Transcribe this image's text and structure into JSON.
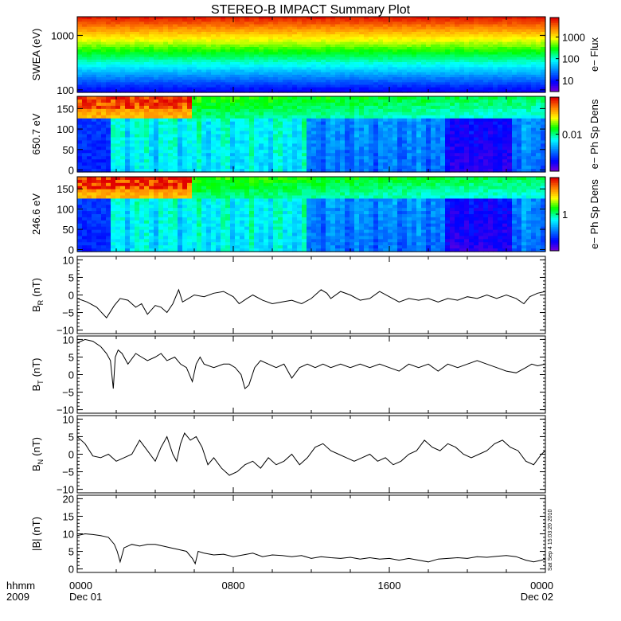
{
  "chart_data": [
    {
      "type": "heatmap",
      "title": "STEREO-B IMPACT Summary Plot",
      "ylabel": "SWEA (eV)",
      "yscale": "log",
      "ylim": [
        90,
        2200
      ],
      "yticks": [
        {
          "v": 100,
          "label": "100"
        },
        {
          "v": 1000,
          "label": "1000"
        }
      ],
      "colorbar": {
        "label": "e− Flux",
        "scale": "log",
        "range": [
          3,
          8000
        ],
        "ticks": [
          {
            "v": 10,
            "label": "10"
          },
          {
            "v": 100,
            "label": "100"
          },
          {
            "v": 1000,
            "label": "1000"
          }
        ]
      }
    },
    {
      "type": "heatmap",
      "ylabel": "650.7 eV",
      "ylim": [
        -5,
        180
      ],
      "yticks": [
        {
          "v": 0,
          "label": "0"
        },
        {
          "v": 50,
          "label": "50"
        },
        {
          "v": 100,
          "label": "100"
        },
        {
          "v": 150,
          "label": "150"
        }
      ],
      "colorbar": {
        "label": "e− Ph Sp Dens",
        "scale": "log",
        "range": [
          0.001,
          0.1
        ],
        "ticks": [
          {
            "v": 0.01,
            "label": "0.01"
          }
        ]
      }
    },
    {
      "type": "heatmap",
      "ylabel": "246.6 eV",
      "ylim": [
        -5,
        180
      ],
      "yticks": [
        {
          "v": 0,
          "label": "0"
        },
        {
          "v": 50,
          "label": "50"
        },
        {
          "v": 100,
          "label": "100"
        },
        {
          "v": 150,
          "label": "150"
        }
      ],
      "colorbar": {
        "label": "e− Ph Sp Dens",
        "scale": "log",
        "range": [
          0.1,
          10
        ],
        "ticks": [
          {
            "v": 1,
            "label": "1"
          }
        ]
      }
    },
    {
      "type": "line",
      "ylabel": "B",
      "ylabel_sub": "R",
      "ylabel_unit": "(nT)",
      "ylim": [
        -11,
        11
      ],
      "yticks": [
        {
          "v": -10,
          "label": "−10"
        },
        {
          "v": -5,
          "label": "−5"
        },
        {
          "v": 0,
          "label": "0"
        },
        {
          "v": 5,
          "label": "5"
        },
        {
          "v": 10,
          "label": "10"
        }
      ],
      "series": [
        {
          "x": [
            0,
            0.5,
            1,
            1.5,
            1.9,
            2.2,
            2.6,
            3,
            3.3,
            3.6,
            4,
            4.3,
            4.6,
            4.9,
            5.2,
            5.4,
            5.7,
            6,
            6.5,
            7,
            7.5,
            8,
            8.3,
            8.7,
            9,
            9.5,
            10,
            10.5,
            11,
            11.5,
            12,
            12.5,
            12.8,
            13,
            13.5,
            14,
            14.5,
            15,
            15.5,
            16,
            16.5,
            17,
            17.5,
            18,
            18.5,
            19,
            19.5,
            20,
            20.5,
            21,
            21.5,
            22,
            22.5,
            22.9,
            23.2,
            23.6,
            24
          ],
          "y": [
            -1,
            -2,
            -3.5,
            -6.5,
            -3,
            -1,
            -1.5,
            -3.5,
            -2.5,
            -5.5,
            -3,
            -3.5,
            -5,
            -2.5,
            1.5,
            -2,
            -1,
            0,
            -0.5,
            0.5,
            1,
            -0.5,
            -2.5,
            -1,
            0,
            -1.5,
            -2.5,
            -2,
            -1.5,
            -2.5,
            -1,
            1.5,
            0.5,
            -1,
            1,
            0,
            -1.5,
            -1,
            1,
            -0.5,
            -2,
            -1,
            -1.5,
            -1,
            -2,
            -1,
            -1.5,
            -0.5,
            -1,
            0,
            -1,
            0,
            -1,
            -2.5,
            -0.5,
            0.5,
            1
          ]
        }
      ]
    },
    {
      "type": "line",
      "ylabel": "B",
      "ylabel_sub": "T",
      "ylabel_unit": "(nT)",
      "ylim": [
        -11,
        11
      ],
      "yticks": [
        {
          "v": -10,
          "label": "−10"
        },
        {
          "v": -5,
          "label": "−5"
        },
        {
          "v": 0,
          "label": "0"
        },
        {
          "v": 5,
          "label": "5"
        },
        {
          "v": 10,
          "label": "10"
        }
      ],
      "series": [
        {
          "x": [
            0,
            0.4,
            0.8,
            1.2,
            1.5,
            1.7,
            1.85,
            1.95,
            2.1,
            2.3,
            2.6,
            3,
            3.3,
            3.6,
            4,
            4.3,
            4.6,
            5,
            5.3,
            5.6,
            5.9,
            6.1,
            6.3,
            6.5,
            7,
            7.5,
            7.8,
            8.1,
            8.4,
            8.6,
            8.8,
            9.1,
            9.4,
            9.8,
            10.2,
            10.6,
            11,
            11.4,
            11.8,
            12.2,
            12.6,
            13,
            13.5,
            14,
            14.5,
            15,
            15.5,
            16,
            16.5,
            17,
            17.5,
            18,
            18.5,
            19,
            19.5,
            20,
            20.5,
            21,
            21.5,
            22,
            22.5,
            23,
            23.3,
            23.6,
            24
          ],
          "y": [
            9,
            10,
            9.5,
            8,
            6,
            4,
            -4,
            5,
            7,
            6,
            3,
            6,
            5,
            4,
            5,
            6,
            4,
            5,
            3,
            2,
            -2,
            3,
            5,
            3,
            2,
            3,
            3,
            2,
            0,
            -4,
            -3,
            2,
            4,
            3,
            2,
            3,
            -1,
            2,
            3,
            2,
            3,
            2,
            3,
            2,
            3,
            2,
            3,
            2,
            1,
            3,
            2,
            3,
            1,
            3,
            2,
            3,
            4,
            3,
            2,
            1,
            0.5,
            2,
            3,
            2.5,
            3
          ]
        }
      ]
    },
    {
      "type": "line",
      "ylabel": "B",
      "ylabel_sub": "N",
      "ylabel_unit": "(nT)",
      "ylim": [
        -11,
        11
      ],
      "yticks": [
        {
          "v": -10,
          "label": "−10"
        },
        {
          "v": -5,
          "label": "−5"
        },
        {
          "v": 0,
          "label": "0"
        },
        {
          "v": 5,
          "label": "5"
        },
        {
          "v": 10,
          "label": "10"
        }
      ],
      "series": [
        {
          "x": [
            0,
            0.4,
            0.8,
            1.2,
            1.6,
            2,
            2.4,
            2.8,
            3.2,
            3.6,
            4,
            4.3,
            4.6,
            4.9,
            5.1,
            5.3,
            5.5,
            5.8,
            6.1,
            6.4,
            6.7,
            7,
            7.4,
            7.8,
            8.2,
            8.6,
            9,
            9.4,
            9.8,
            10.2,
            10.6,
            11,
            11.4,
            11.8,
            12.2,
            12.6,
            13,
            13.4,
            13.8,
            14.2,
            14.6,
            15,
            15.4,
            15.8,
            16.2,
            16.6,
            17,
            17.4,
            17.8,
            18.2,
            18.6,
            19,
            19.4,
            19.8,
            20.2,
            20.6,
            21,
            21.4,
            21.8,
            22.2,
            22.6,
            23,
            23.4,
            23.8,
            24
          ],
          "y": [
            5,
            3,
            -0.5,
            -1,
            0,
            -2,
            -1,
            0,
            4,
            1,
            -2,
            2,
            5,
            0,
            -2,
            3,
            6,
            4,
            5,
            2,
            -3,
            -1,
            -4,
            -6,
            -5,
            -3,
            -2,
            -4,
            -1,
            -3,
            -2,
            0,
            -3,
            -1,
            2,
            3,
            1,
            0,
            -1,
            -2,
            -1,
            0,
            -2,
            -1,
            -3,
            -2,
            0,
            1,
            4,
            2,
            1,
            3,
            2,
            0,
            -1,
            0,
            1,
            3,
            4,
            2,
            1,
            -2,
            -3,
            0,
            1
          ]
        }
      ]
    },
    {
      "type": "line",
      "ylabel": "|B| (nT)",
      "ylim": [
        -1,
        21
      ],
      "yticks": [
        {
          "v": 0,
          "label": "0"
        },
        {
          "v": 5,
          "label": "5"
        },
        {
          "v": 10,
          "label": "10"
        },
        {
          "v": 15,
          "label": "15"
        },
        {
          "v": 20,
          "label": "20"
        }
      ],
      "series": [
        {
          "x": [
            0,
            0.4,
            0.8,
            1.2,
            1.6,
            1.9,
            2.05,
            2.2,
            2.4,
            2.8,
            3.2,
            3.6,
            4,
            4.4,
            4.8,
            5.2,
            5.6,
            5.9,
            6.05,
            6.2,
            6.5,
            7,
            7.5,
            8,
            8.5,
            9,
            9.5,
            10,
            10.5,
            11,
            11.5,
            12,
            12.5,
            13,
            13.5,
            14,
            14.5,
            15,
            15.5,
            16,
            16.5,
            17,
            17.5,
            18,
            18.5,
            19,
            19.5,
            20,
            20.5,
            21,
            21.5,
            22,
            22.5,
            23,
            23.4,
            23.8,
            24
          ],
          "y": [
            9.5,
            10,
            9.8,
            9.5,
            9,
            7,
            5,
            2,
            6,
            7,
            6.5,
            7,
            7,
            6.5,
            6,
            5.5,
            5,
            3,
            1.5,
            5,
            4.5,
            4,
            4.2,
            3.5,
            4,
            4.5,
            3.5,
            4,
            3.8,
            3.5,
            3.8,
            3,
            3.5,
            3.2,
            3,
            3.3,
            2.8,
            3.2,
            2.8,
            3,
            2.5,
            3,
            2.5,
            2,
            2.8,
            3,
            3.2,
            3,
            3.5,
            3.3,
            3.6,
            3.8,
            3.5,
            2.5,
            2,
            2.5,
            2.8
          ]
        }
      ]
    }
  ],
  "xaxis": {
    "ticks": [
      {
        "h": 0,
        "label": "0000",
        "date": "Dec 01"
      },
      {
        "h": 8,
        "label": "0800",
        "date": ""
      },
      {
        "h": 16,
        "label": "1600",
        "date": ""
      },
      {
        "h": 24,
        "label": "0000",
        "date": "Dec 02"
      }
    ],
    "range_hours": [
      0,
      24
    ],
    "corner_label_1": "hhmm",
    "corner_label_2": "2009"
  },
  "timestamp": "Sat Sep  4 15:03:20 2010"
}
